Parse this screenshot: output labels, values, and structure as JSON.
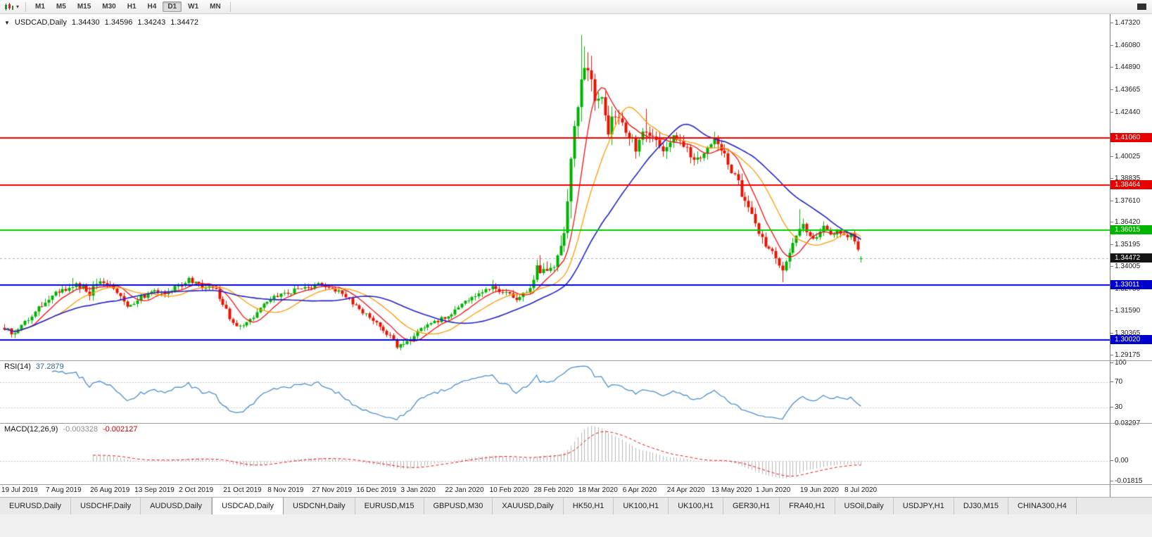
{
  "toolbar": {
    "timeframes": [
      {
        "label": "M1",
        "active": false
      },
      {
        "label": "M5",
        "active": false
      },
      {
        "label": "M15",
        "active": false
      },
      {
        "label": "M30",
        "active": false
      },
      {
        "label": "H1",
        "active": false
      },
      {
        "label": "H4",
        "active": false
      },
      {
        "label": "D1",
        "active": true
      },
      {
        "label": "W1",
        "active": false
      },
      {
        "label": "MN",
        "active": false
      }
    ]
  },
  "header": {
    "expander": "▼",
    "symbol": "USDCAD,Daily",
    "open": "1.34430",
    "high": "1.34596",
    "low": "1.34243",
    "close": "1.34472"
  },
  "indicators": {
    "rsi": {
      "name": "RSI(14)",
      "value": "37.2879"
    },
    "macd": {
      "name": "MACD(12,26,9)",
      "main": "-0.003328",
      "signal": "-0.002127"
    }
  },
  "price_axis": {
    "ticks": [
      "1.47320",
      "1.46080",
      "1.44890",
      "1.43665",
      "1.42440",
      "1.40025",
      "1.38835",
      "1.37610",
      "1.36420",
      "1.35195",
      "1.34005",
      "1.32780",
      "1.31590",
      "1.30365",
      "1.29175"
    ],
    "flags": [
      {
        "label": "1.41060",
        "price": 1.4106,
        "color": "#e60000"
      },
      {
        "label": "1.38464",
        "price": 1.38464,
        "color": "#e60000"
      },
      {
        "label": "1.36015",
        "price": 1.36015,
        "color": "#00b400"
      },
      {
        "label": "1.34472",
        "price": 1.34472,
        "color": "#141414"
      },
      {
        "label": "1.33011",
        "price": 1.33011,
        "color": "#0000cc"
      },
      {
        "label": "1.30020",
        "price": 1.3002,
        "color": "#0000cc"
      }
    ],
    "rsi_ticks": [
      {
        "label": "100",
        "value": 100
      },
      {
        "label": "70",
        "value": 70
      },
      {
        "label": "30",
        "value": 30
      }
    ],
    "macd_ticks": [
      {
        "label": "0.03297",
        "value": 0.03297
      },
      {
        "label": "0.00",
        "value": 0
      },
      {
        "label": "-0.01815",
        "value": -0.01815
      }
    ]
  },
  "dates": [
    "19 Jul 2019",
    "7 Aug 2019",
    "26 Aug 2019",
    "13 Sep 2019",
    "2 Oct 2019",
    "21 Oct 2019",
    "8 Nov 2019",
    "27 Nov 2019",
    "16 Dec 2019",
    "3 Jan 2020",
    "22 Jan 2020",
    "10 Feb 2020",
    "28 Feb 2020",
    "18 Mar 2020",
    "6 Apr 2020",
    "24 Apr 2020",
    "13 May 2020",
    "1 Jun 2020",
    "19 Jun 2020",
    "8 Jul 2020"
  ],
  "tabs": [
    {
      "label": "EURUSD,Daily",
      "active": false
    },
    {
      "label": "USDCHF,Daily",
      "active": false
    },
    {
      "label": "AUDUSD,Daily",
      "active": false
    },
    {
      "label": "USDCAD,Daily",
      "active": true
    },
    {
      "label": "USDCNH,Daily",
      "active": false
    },
    {
      "label": "EURUSD,M15",
      "active": false
    },
    {
      "label": "GBPUSD,M30",
      "active": false
    },
    {
      "label": "XAUUSD,Daily",
      "active": false
    },
    {
      "label": "HK50,H1",
      "active": false
    },
    {
      "label": "UK100,H1",
      "active": false
    },
    {
      "label": "UK100,H1",
      "active": false
    },
    {
      "label": "GER30,H1",
      "active": false
    },
    {
      "label": "FRA40,H1",
      "active": false
    },
    {
      "label": "USOil,Daily",
      "active": false
    },
    {
      "label": "USDJPY,H1",
      "active": false
    },
    {
      "label": "DJ30,M15",
      "active": false
    },
    {
      "label": "CHINA300,H4",
      "active": false
    }
  ],
  "chart_data": {
    "type": "candlestick",
    "symbol": "USDCAD",
    "timeframe": "Daily",
    "title": "USDCAD,Daily 1.34430 1.34596 1.34243 1.34472",
    "candle_count": 252,
    "price_range": [
      1.289,
      1.4782
    ],
    "bid_line": 1.34472,
    "last_candle": {
      "o": 1.3443,
      "h": 1.34596,
      "l": 1.34243,
      "c": 1.34472
    },
    "waypoints": [
      [
        0,
        1.306,
        0.005
      ],
      [
        3,
        1.304,
        0.005
      ],
      [
        6,
        1.309,
        0.005
      ],
      [
        10,
        1.318,
        0.0048
      ],
      [
        13,
        1.323,
        0.0045
      ],
      [
        17,
        1.328,
        0.0045
      ],
      [
        21,
        1.33,
        0.005
      ],
      [
        25,
        1.326,
        0.0055
      ],
      [
        28,
        1.3315,
        0.005
      ],
      [
        31,
        1.329,
        0.0048
      ],
      [
        34,
        1.323,
        0.0048
      ],
      [
        36,
        1.3185,
        0.0045
      ],
      [
        39,
        1.3225,
        0.0042
      ],
      [
        43,
        1.3265,
        0.004
      ],
      [
        47,
        1.3245,
        0.004
      ],
      [
        51,
        1.33,
        0.0045
      ],
      [
        54,
        1.333,
        0.0042
      ],
      [
        58,
        1.3295,
        0.004
      ],
      [
        62,
        1.327,
        0.004
      ],
      [
        65,
        1.316,
        0.0045
      ],
      [
        68,
        1.307,
        0.0042
      ],
      [
        71,
        1.3095,
        0.004
      ],
      [
        75,
        1.3175,
        0.0038
      ],
      [
        78,
        1.323,
        0.0038
      ],
      [
        83,
        1.326,
        0.0035
      ],
      [
        88,
        1.329,
        0.0038
      ],
      [
        92,
        1.33,
        0.0038
      ],
      [
        96,
        1.3285,
        0.0035
      ],
      [
        100,
        1.324,
        0.0038
      ],
      [
        104,
        1.317,
        0.0038
      ],
      [
        108,
        1.3115,
        0.0038
      ],
      [
        112,
        1.304,
        0.0038
      ],
      [
        115,
        1.297,
        0.004
      ],
      [
        118,
        1.299,
        0.0038
      ],
      [
        122,
        1.3055,
        0.0038
      ],
      [
        126,
        1.31,
        0.0036
      ],
      [
        130,
        1.3135,
        0.0036
      ],
      [
        135,
        1.3205,
        0.0036
      ],
      [
        139,
        1.3255,
        0.0036
      ],
      [
        143,
        1.329,
        0.0038
      ],
      [
        147,
        1.325,
        0.0045
      ],
      [
        151,
        1.322,
        0.005
      ],
      [
        154,
        1.329,
        0.006
      ],
      [
        156,
        1.34,
        0.0075
      ],
      [
        159,
        1.338,
        0.008
      ],
      [
        162,
        1.3445,
        0.0095
      ],
      [
        164,
        1.36,
        0.013
      ],
      [
        166,
        1.395,
        0.017
      ],
      [
        168,
        1.43,
        0.019
      ],
      [
        169,
        1.449,
        0.02
      ],
      [
        171,
        1.443,
        0.017
      ],
      [
        173,
        1.433,
        0.015
      ],
      [
        175,
        1.43,
        0.013
      ],
      [
        177,
        1.416,
        0.012
      ],
      [
        179,
        1.423,
        0.011
      ],
      [
        181,
        1.419,
        0.01
      ],
      [
        183,
        1.412,
        0.0095
      ],
      [
        185,
        1.406,
        0.009
      ],
      [
        188,
        1.414,
        0.0095
      ],
      [
        191,
        1.407,
        0.0085
      ],
      [
        194,
        1.403,
        0.008
      ],
      [
        196,
        1.4095,
        0.008
      ],
      [
        199,
        1.406,
        0.0072
      ],
      [
        202,
        1.399,
        0.0072
      ],
      [
        205,
        1.403,
        0.007
      ],
      [
        208,
        1.409,
        0.007
      ],
      [
        211,
        1.401,
        0.007
      ],
      [
        214,
        1.39,
        0.0068
      ],
      [
        217,
        1.376,
        0.0068
      ],
      [
        220,
        1.362,
        0.0068
      ],
      [
        223,
        1.353,
        0.0068
      ],
      [
        226,
        1.345,
        0.0068
      ],
      [
        228,
        1.3395,
        0.0068
      ],
      [
        230,
        1.349,
        0.007
      ],
      [
        232,
        1.359,
        0.0062
      ],
      [
        234,
        1.362,
        0.0055
      ],
      [
        236,
        1.3585,
        0.005
      ],
      [
        238,
        1.3555,
        0.0048
      ],
      [
        240,
        1.361,
        0.0046
      ],
      [
        242,
        1.3575,
        0.0044
      ],
      [
        244,
        1.3605,
        0.0042
      ],
      [
        246,
        1.3565,
        0.0042
      ],
      [
        248,
        1.3585,
        0.004
      ],
      [
        250,
        1.348,
        0.0045
      ],
      [
        251,
        1.3447,
        0.004
      ]
    ],
    "spikes": [
      {
        "i": 2,
        "l": 1.3015
      },
      {
        "i": 20,
        "h": 1.334
      },
      {
        "i": 54,
        "h": 1.3348
      },
      {
        "i": 92,
        "h": 1.332
      },
      {
        "i": 115,
        "l": 1.2951
      },
      {
        "i": 143,
        "h": 1.333
      },
      {
        "i": 157,
        "h": 1.3465
      },
      {
        "i": 169,
        "h": 1.4668
      },
      {
        "i": 170,
        "h": 1.4605
      },
      {
        "i": 188,
        "h": 1.4265
      },
      {
        "i": 208,
        "h": 1.4139
      },
      {
        "i": 228,
        "l": 1.3317
      },
      {
        "i": 233,
        "h": 1.3715
      }
    ],
    "moving_averages": [
      {
        "period": 8,
        "color": "#ee1111",
        "width": 1.3
      },
      {
        "period": 17,
        "color": "#ff9900",
        "width": 1.3
      },
      {
        "period": 34,
        "color": "#2222cc",
        "width": 1.6
      }
    ],
    "h_lines": [
      {
        "price": 1.4106,
        "color": "#ee0000"
      },
      {
        "price": 1.38464,
        "color": "#ee0000"
      },
      {
        "price": 1.36015,
        "color": "#00cc00"
      },
      {
        "price": 1.33011,
        "color": "#0000dd"
      },
      {
        "price": 1.3002,
        "color": "#0000dd"
      }
    ],
    "rsi": {
      "period": 14,
      "color": "#4a8fd0",
      "levels": [
        70,
        30
      ],
      "range": [
        5,
        105
      ]
    },
    "macd": {
      "fast": 12,
      "slow": 26,
      "signal": 9,
      "range": [
        -0.0207,
        0.0338
      ]
    },
    "colors": {
      "up": "#00b200",
      "down": "#e51400",
      "macd_hist": "#b4b4b4",
      "macd_signal": "#ee1111",
      "bid_dash": "#b0b0b0",
      "level_dash": "#c6c6c6"
    }
  }
}
